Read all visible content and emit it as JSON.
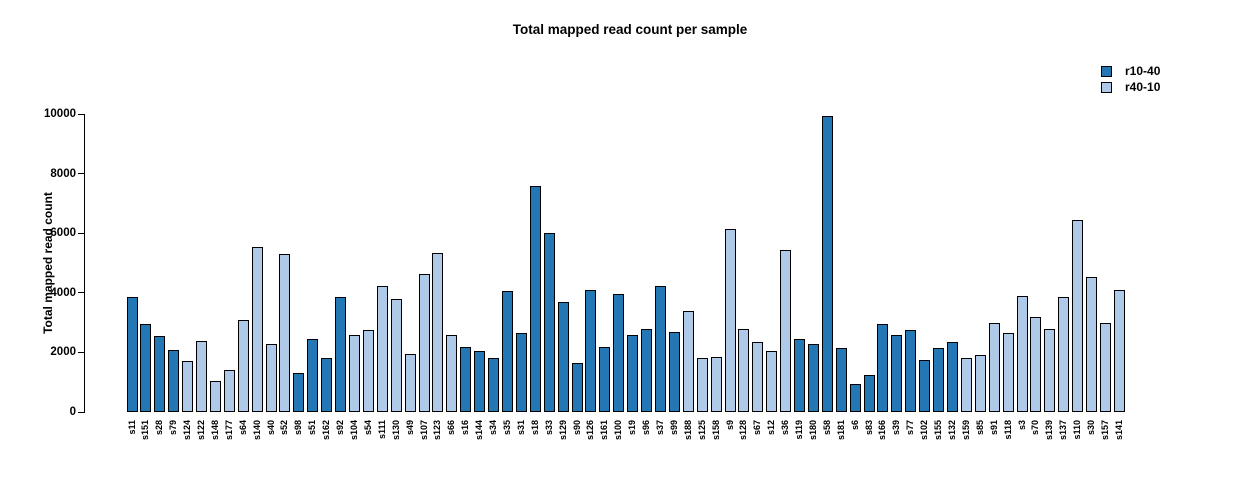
{
  "chart_data": {
    "type": "bar",
    "title": "Total mapped read count per sample",
    "xlabel": "",
    "ylabel": "Total mapped read count",
    "ylim": [
      0,
      10000
    ],
    "yticks": [
      0,
      2000,
      4000,
      6000,
      8000,
      10000
    ],
    "grid": false,
    "legend_position": "top-right",
    "bar_border_color": "#000000",
    "series": [
      {
        "name": "r10-40",
        "color": "#2277B4"
      },
      {
        "name": "r40-10",
        "color": "#AFC9E8"
      }
    ],
    "categories": [
      "s11",
      "s151",
      "s28",
      "s79",
      "s124",
      "s122",
      "s148",
      "s177",
      "s64",
      "s140",
      "s40",
      "s52",
      "s98",
      "s51",
      "s162",
      "s92",
      "s104",
      "s54",
      "s111",
      "s130",
      "s49",
      "s107",
      "s123",
      "s66",
      "s16",
      "s144",
      "s34",
      "s35",
      "s31",
      "s18",
      "s33",
      "s129",
      "s90",
      "s126",
      "s161",
      "s100",
      "s19",
      "s96",
      "s37",
      "s99",
      "s188",
      "s125",
      "s158",
      "s9",
      "s128",
      "s67",
      "s12",
      "s36",
      "s119",
      "s180",
      "s58",
      "s181",
      "s6",
      "s83",
      "s166",
      "s39",
      "s77",
      "s102",
      "s155",
      "s132",
      "s159",
      "s85",
      "s91",
      "s118",
      "s3",
      "s70",
      "s139",
      "s137",
      "s110",
      "s30",
      "s157",
      "s141"
    ],
    "values": [
      3850,
      2950,
      2550,
      2100,
      1700,
      2400,
      1050,
      1400,
      3100,
      5550,
      2300,
      5300,
      1300,
      2450,
      1800,
      3850,
      2600,
      2750,
      4250,
      3800,
      1950,
      4650,
      5350,
      2600,
      2200,
      2050,
      1800,
      4050,
      2650,
      7600,
      6000,
      3700,
      1650,
      4100,
      2200,
      3950,
      2600,
      2800,
      4250,
      2700,
      3400,
      1800,
      1850,
      6150,
      2800,
      2350,
      2050,
      5450,
      2450,
      2300,
      9950,
      2150,
      950,
      1250,
      2950,
      2600,
      2750,
      1750,
      2150,
      2350,
      1800,
      1900,
      3000,
      2650,
      3900,
      3200,
      2800,
      3850,
      6450,
      4550,
      3000,
      4100
    ],
    "groups": [
      "r10-40",
      "r10-40",
      "r10-40",
      "r10-40",
      "r40-10",
      "r40-10",
      "r40-10",
      "r40-10",
      "r40-10",
      "r40-10",
      "r40-10",
      "r40-10",
      "r10-40",
      "r10-40",
      "r10-40",
      "r10-40",
      "r40-10",
      "r40-10",
      "r40-10",
      "r40-10",
      "r40-10",
      "r40-10",
      "r40-10",
      "r40-10",
      "r10-40",
      "r10-40",
      "r10-40",
      "r10-40",
      "r10-40",
      "r10-40",
      "r10-40",
      "r10-40",
      "r10-40",
      "r10-40",
      "r10-40",
      "r10-40",
      "r10-40",
      "r10-40",
      "r10-40",
      "r10-40",
      "r40-10",
      "r40-10",
      "r40-10",
      "r40-10",
      "r40-10",
      "r40-10",
      "r40-10",
      "r40-10",
      "r10-40",
      "r10-40",
      "r10-40",
      "r10-40",
      "r10-40",
      "r10-40",
      "r10-40",
      "r10-40",
      "r10-40",
      "r10-40",
      "r10-40",
      "r10-40",
      "r40-10",
      "r40-10",
      "r40-10",
      "r40-10",
      "r40-10",
      "r40-10",
      "r40-10",
      "r40-10",
      "r40-10",
      "r40-10",
      "r40-10",
      "r40-10"
    ]
  }
}
